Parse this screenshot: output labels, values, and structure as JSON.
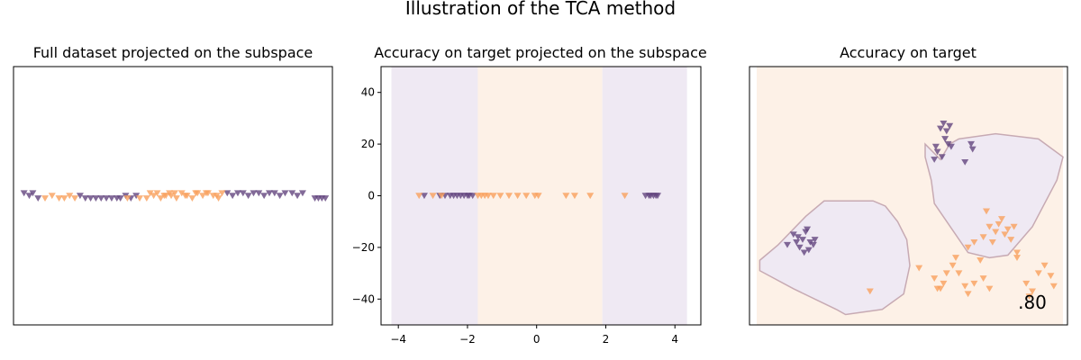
{
  "figure": {
    "suptitle": "Illustration of the TCA method"
  },
  "colors": {
    "class_a": "#63457e",
    "class_b": "#f9a05c",
    "region_a": "#efe9f3",
    "region_b": "#fdf1e7",
    "boundary": "#c7aab3"
  },
  "chart_data": [
    {
      "type": "scatter",
      "title": "Full dataset projected on the subspace",
      "axes_visible": false,
      "xlim": [
        -4.5,
        4.6
      ],
      "ylim": [
        -50,
        50
      ],
      "marker": "triangle-down",
      "series": [
        {
          "class": "a",
          "x": [
            -4.2,
            -4.05,
            -3.95,
            -3.8,
            -2.6,
            -2.45,
            -2.3,
            -2.15,
            -2.0,
            -1.85,
            -1.7,
            -1.55,
            -1.45,
            -1.3,
            -1.15,
            -1.0,
            1.6,
            1.75,
            1.9,
            2.05,
            2.2,
            2.35,
            2.5,
            2.65,
            2.8,
            2.95,
            3.1,
            3.25,
            3.45,
            3.6,
            3.75,
            4.1,
            4.2,
            4.3,
            4.4
          ],
          "y": [
            1,
            0,
            1,
            -1,
            0,
            -1,
            -1,
            -1,
            -1,
            -1,
            -1,
            -1,
            -1,
            0,
            -1,
            0,
            1,
            0,
            1,
            1,
            0,
            1,
            1,
            0,
            1,
            1,
            0,
            1,
            1,
            0,
            1,
            -1,
            -1,
            -1,
            -1
          ]
        },
        {
          "class": "b",
          "x": [
            -3.6,
            -3.4,
            -3.2,
            -3.05,
            -2.9,
            -2.75,
            -0.9,
            -0.7,
            -0.5,
            -0.3,
            -0.15,
            0.0,
            0.15,
            0.3,
            0.45,
            0.6,
            0.75,
            0.9,
            1.05,
            1.2,
            1.35,
            -0.6,
            -0.4,
            -0.2,
            0.1,
            0.4,
            0.7,
            1.0,
            1.3,
            1.45,
            -1.25,
            -0.05
          ],
          "y": [
            -1,
            0,
            -1,
            -1,
            0,
            -1,
            -1,
            -1,
            0,
            -1,
            0,
            0,
            -1,
            1,
            0,
            -1,
            1,
            0,
            1,
            0,
            -1,
            1,
            1,
            0,
            1,
            0,
            1,
            1,
            0,
            1,
            -1,
            1
          ]
        }
      ]
    },
    {
      "type": "scatter",
      "title": "Accuracy on target projected on the subspace",
      "xlim": [
        -4.5,
        4.75
      ],
      "ylim": [
        -50,
        50
      ],
      "xticks": [
        -4,
        -2,
        0,
        2,
        4
      ],
      "yticks": [
        40,
        20,
        0,
        -20,
        -40
      ],
      "decision_regions": [
        {
          "x_from": -4.2,
          "x_to": -1.7,
          "class": "a"
        },
        {
          "x_from": -1.7,
          "x_to": 1.9,
          "class": "b"
        },
        {
          "x_from": 1.9,
          "x_to": 4.35,
          "class": "a"
        }
      ],
      "marker": "triangle-down",
      "series": [
        {
          "class": "a",
          "x": [
            -3.25,
            -2.8,
            -2.65,
            -2.5,
            -2.4,
            -2.3,
            -2.2,
            -2.1,
            -2.0,
            -1.95,
            -1.85,
            3.15,
            3.25,
            3.3,
            3.38,
            3.45,
            3.5
          ],
          "y": [
            0,
            0,
            0,
            0,
            0,
            0,
            0,
            0,
            0,
            0,
            0,
            0,
            0,
            0,
            0,
            0,
            0
          ]
        },
        {
          "class": "b",
          "x": [
            -3.4,
            -3.0,
            -2.75,
            -1.7,
            -1.6,
            -1.5,
            -1.4,
            -1.25,
            -1.05,
            -0.8,
            -0.55,
            -0.3,
            -0.05,
            0.05,
            0.85,
            1.1,
            1.55,
            2.55
          ],
          "y": [
            0,
            0,
            0,
            0,
            0,
            0,
            0,
            0,
            0,
            0,
            0,
            0,
            0,
            0,
            0,
            0,
            0,
            0
          ]
        }
      ]
    },
    {
      "type": "scatter",
      "title": "Accuracy on target",
      "axes_visible": false,
      "xlim": [
        0,
        10
      ],
      "ylim": [
        0,
        10
      ],
      "annotation": ".80",
      "decision_regions": [
        {
          "class": "a",
          "polygon": [
            [
              0.1,
              2.5
            ],
            [
              0.7,
              3.1
            ],
            [
              1.6,
              4.2
            ],
            [
              2.2,
              4.8
            ],
            [
              3.8,
              4.8
            ],
            [
              4.2,
              4.6
            ],
            [
              4.6,
              4.0
            ],
            [
              4.9,
              3.3
            ],
            [
              5.0,
              2.3
            ],
            [
              4.8,
              1.2
            ],
            [
              4.1,
              0.6
            ],
            [
              2.9,
              0.4
            ],
            [
              2.6,
              0.6
            ],
            [
              1.2,
              1.4
            ],
            [
              0.1,
              2.1
            ]
          ]
        },
        {
          "class": "a",
          "polygon": [
            [
              6.0,
              6.4
            ],
            [
              6.3,
              7.0
            ],
            [
              6.6,
              7.2
            ],
            [
              7.8,
              7.4
            ],
            [
              9.2,
              7.2
            ],
            [
              10.0,
              6.5
            ],
            [
              9.8,
              5.6
            ],
            [
              9.0,
              3.8
            ],
            [
              8.2,
              2.7
            ],
            [
              7.6,
              2.6
            ],
            [
              6.9,
              2.8
            ],
            [
              5.8,
              4.7
            ],
            [
              5.7,
              5.6
            ],
            [
              5.5,
              6.5
            ],
            [
              5.5,
              7.0
            ]
          ]
        }
      ],
      "marker": "triangle-down",
      "series": [
        {
          "class": "a",
          "x": [
            6.0,
            6.1,
            6.2,
            6.3,
            6.15,
            6.25,
            5.9,
            6.05,
            6.35,
            7.0,
            7.05,
            6.8,
            5.8,
            5.85,
            1.2,
            1.35,
            1.5,
            1.6,
            1.75,
            1.85,
            1.4,
            1.55,
            1.7,
            1.3,
            1.65,
            1.9,
            1.0
          ],
          "y": [
            7.6,
            7.8,
            7.5,
            7.7,
            7.2,
            7.0,
            6.7,
            6.5,
            6.9,
            7.0,
            6.8,
            6.3,
            6.4,
            6.9,
            3.5,
            3.4,
            3.3,
            3.6,
            3.2,
            3.1,
            3.0,
            2.8,
            2.9,
            3.2,
            3.7,
            3.3,
            3.1
          ]
        },
        {
          "class": "b",
          "x": [
            7.5,
            7.6,
            7.8,
            7.9,
            8.0,
            8.2,
            7.4,
            7.1,
            6.9,
            7.7,
            8.1,
            8.3,
            8.4,
            8.5,
            7.3,
            6.5,
            6.4,
            6.6,
            5.3,
            5.8,
            5.9,
            6.1,
            6.2,
            6.9,
            7.1,
            7.4,
            7.6,
            8.8,
            8.9,
            9.0,
            9.2,
            9.4,
            9.6,
            9.7,
            3.7,
            6.8,
            6.0,
            8.5
          ],
          "y": [
            4.4,
            3.8,
            3.6,
            3.9,
            4.1,
            3.7,
            3.4,
            3.2,
            3.0,
            3.2,
            3.5,
            3.3,
            3.8,
            2.8,
            2.5,
            2.6,
            2.3,
            2.0,
            2.2,
            1.8,
            1.4,
            1.6,
            2.0,
            1.2,
            1.6,
            1.8,
            1.4,
            1.6,
            1.1,
            1.3,
            2.0,
            2.3,
            1.9,
            1.5,
            1.3,
            1.5,
            1.4,
            2.6
          ]
        }
      ]
    }
  ]
}
